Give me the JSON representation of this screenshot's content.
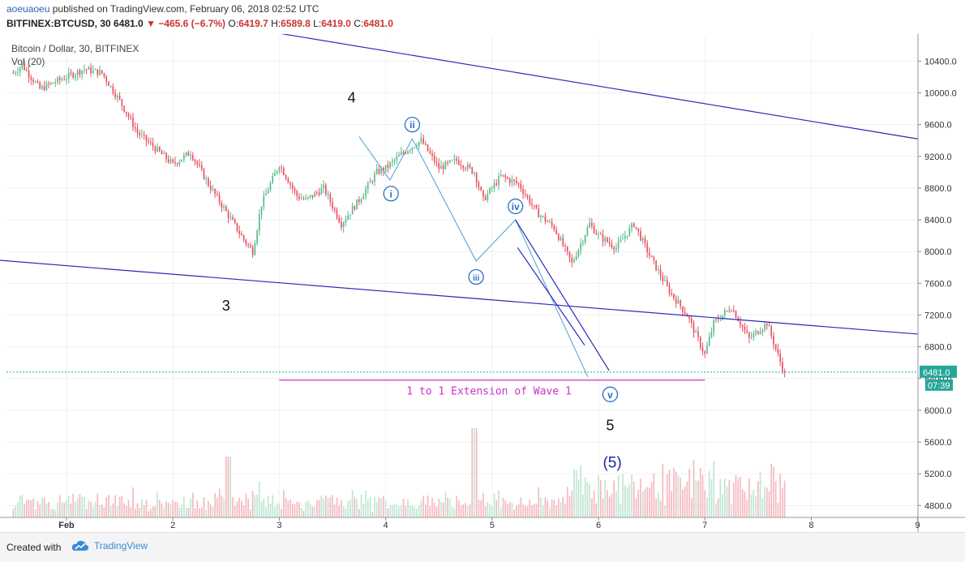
{
  "header": {
    "user": "aoeuaoeu",
    "published_text": "published on TradingView.com, February 06, 2018 02:52 UTC",
    "symbol": "BITFINEX:BTCUSD, 30",
    "last": "6481.0",
    "change_arrow": "▼",
    "change": "−465.6 (−6.7%)",
    "open_label": "O:",
    "open": "6419.7",
    "high_label": "H:",
    "high": "6589.8",
    "low_label": "L:",
    "low": "6419.0",
    "close_label": "C:",
    "close": "6481.0"
  },
  "chart_data": {
    "type": "candlestick",
    "title": "Bitcoin / Dollar, 30, BITFINEX",
    "indicator": "Vol (20)",
    "x_ticks": [
      "Feb",
      "2",
      "3",
      "4",
      "5",
      "6",
      "7",
      "8",
      "9"
    ],
    "y_ticks": [
      10400,
      10000,
      9600,
      9200,
      8800,
      8400,
      8000,
      7600,
      7200,
      6800,
      6400,
      6000,
      5600,
      5200,
      4800
    ],
    "ylim": [
      4650,
      10700
    ],
    "last_price": {
      "value": "6481.0",
      "countdown": "07:39"
    },
    "price_path": [
      [
        "Jan 31 12:00",
        10250
      ],
      [
        "Jan 31 14:00",
        10350
      ],
      [
        "Jan 31 18:00",
        10050
      ],
      [
        "Feb 1 00:00",
        10200
      ],
      [
        "Feb 1 04:00",
        10300
      ],
      [
        "Feb 1 08:00",
        10250
      ],
      [
        "Feb 1 12:00",
        9900
      ],
      [
        "Feb 1 16:00",
        9500
      ],
      [
        "Feb 1 20:00",
        9300
      ],
      [
        "Feb 2 00:00",
        9100
      ],
      [
        "Feb 2 04:00",
        9250
      ],
      [
        "Feb 2 08:00",
        8850
      ],
      [
        "Feb 2 12:00",
        8500
      ],
      [
        "Feb 2 16:00",
        8150
      ],
      [
        "Feb 2 18:00",
        8000
      ],
      [
        "Feb 2 20:00",
        8600
      ],
      [
        "Feb 3 00:00",
        9100
      ],
      [
        "Feb 3 04:00",
        8700
      ],
      [
        "Feb 3 06:00",
        8650
      ],
      [
        "Feb 3 10:00",
        8800
      ],
      [
        "Feb 3 14:00",
        8350
      ],
      [
        "Feb 3 18:00",
        8650
      ],
      [
        "Feb 3 22:00",
        9000
      ],
      [
        "Feb 4 00:00",
        9050
      ],
      [
        "Feb 4 04:00",
        9250
      ],
      [
        "Feb 4 08:00",
        9400
      ],
      [
        "Feb 4 12:00",
        9050
      ],
      [
        "Feb 4 16:00",
        9150
      ],
      [
        "Feb 4 20:00",
        9000
      ],
      [
        "Feb 4 22:00",
        8650
      ],
      [
        "Feb 5 02:00",
        8950
      ],
      [
        "Feb 5 06:00",
        8850
      ],
      [
        "Feb 5 10:00",
        8500
      ],
      [
        "Feb 5 14:00",
        8300
      ],
      [
        "Feb 5 18:00",
        7850
      ],
      [
        "Feb 5 22:00",
        8350
      ],
      [
        "Feb 6 00:00",
        8200
      ],
      [
        "Feb 6 04:00",
        8050
      ],
      [
        "Feb 6 08:00",
        8350
      ],
      [
        "Feb 6 12:00",
        7900
      ],
      [
        "Feb 6 16:00",
        7500
      ],
      [
        "Feb 6 20:00",
        7200
      ],
      [
        "Feb 7 00:00",
        6700
      ],
      [
        "Feb 7 02:00",
        7100
      ],
      [
        "Feb 7 06:00",
        7300
      ],
      [
        "Feb 7 10:00",
        6900
      ],
      [
        "Feb 7 14:00",
        7100
      ],
      [
        "Feb 7 18:00",
        6450
      ]
    ],
    "trendlines": [
      {
        "from": [
          "Feb 3",
          10750
        ],
        "to": [
          "Feb 9",
          9420
        ]
      },
      {
        "from": [
          "Jan 31",
          7930
        ],
        "to": [
          "Feb 9",
          6960
        ]
      },
      {
        "from": [
          "Feb 3",
          6380
        ],
        "to": [
          "Feb 7",
          6380
        ],
        "label": "1 to 1 Extension of Wave 1",
        "color": "#cc33cc"
      }
    ],
    "wave_labels": [
      {
        "text": "3",
        "style": "plain"
      },
      {
        "text": "4",
        "style": "plain"
      },
      {
        "text": "i",
        "style": "circled"
      },
      {
        "text": "ii",
        "style": "circled"
      },
      {
        "text": "iii",
        "style": "circled"
      },
      {
        "text": "iv",
        "style": "circled"
      },
      {
        "text": "v",
        "style": "circled"
      },
      {
        "text": "5",
        "style": "plain"
      },
      {
        "text": "(5)",
        "style": "paren"
      }
    ]
  },
  "colors": {
    "up": "#53b987",
    "down": "#eb4d5c",
    "trend": "#2a2ab5",
    "wave": "#5aa5d6",
    "extension": "#cc33cc",
    "last_price": "#26a69a",
    "label_circle": "#2a6fc9"
  },
  "footer": {
    "created_with": "Created with",
    "brand": "TradingView"
  }
}
